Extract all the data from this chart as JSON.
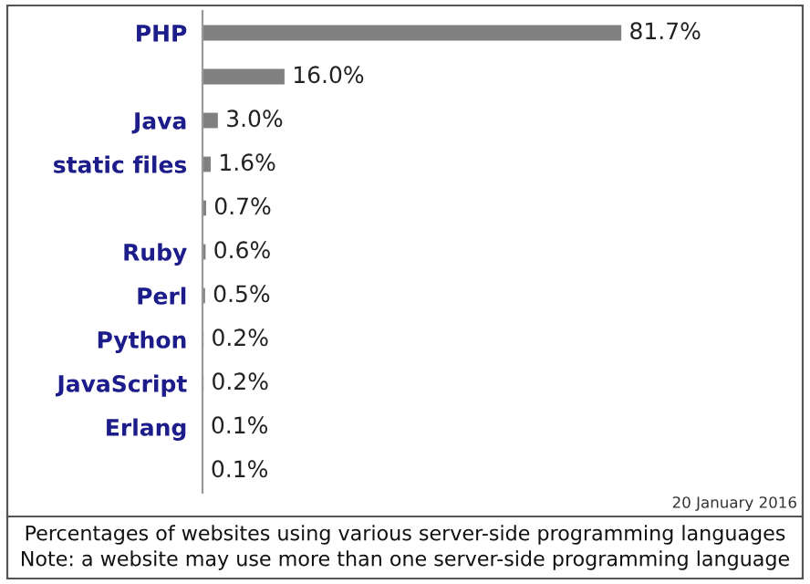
{
  "chart_data": {
    "type": "bar",
    "orientation": "horizontal",
    "categories": [
      "PHP",
      null,
      "Java",
      "static files",
      null,
      "Ruby",
      "Perl",
      "Python",
      "JavaScript",
      "Erlang",
      null
    ],
    "values": [
      81.7,
      16.0,
      3.0,
      1.6,
      0.7,
      0.6,
      0.5,
      0.2,
      0.2,
      0.1,
      0.1
    ],
    "color": "#808080",
    "value_labels": [
      "81.7%",
      "16.0%",
      "3.0%",
      "1.6%",
      "0.7%",
      "0.6%",
      "0.5%",
      "0.2%",
      "0.2%",
      "0.1%",
      "0.1%"
    ],
    "annotations": [
      "20 January 2016",
      "Percentages of websites using various server-side programming languages",
      "Note: a website may use more than one server-side programming language"
    ]
  }
}
